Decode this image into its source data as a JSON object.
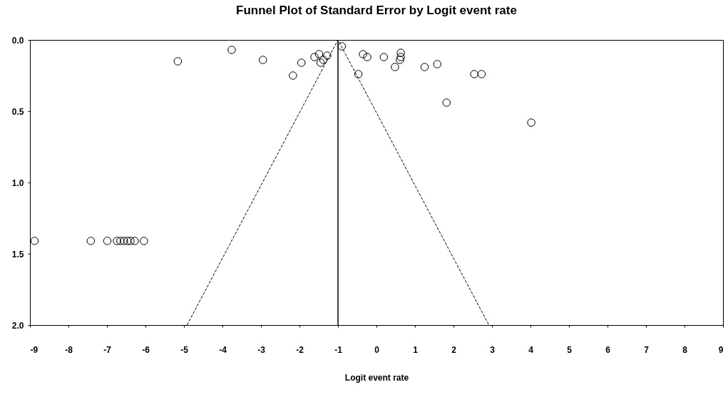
{
  "chart_data": {
    "type": "scatter",
    "title": "Funnel Plot of Standard Error by Logit event rate",
    "xlabel": "Logit event rate",
    "xlim": [
      -9,
      9
    ],
    "xticks": [
      -9,
      -8,
      -7,
      -6,
      -5,
      -4,
      -3,
      -2,
      -1,
      0,
      1,
      2,
      3,
      4,
      5,
      6,
      7,
      8,
      9
    ],
    "ylim": [
      2.0,
      0.0
    ],
    "yticks": [
      {
        "value": 0,
        "label": "0.0"
      },
      {
        "value": 0.5,
        "label": "0.5"
      },
      {
        "value": 1,
        "label": "1.0"
      },
      {
        "value": 1.5,
        "label": "1.5"
      },
      {
        "value": 2,
        "label": "2.0"
      }
    ],
    "grid": false,
    "legend": false,
    "series": [
      {
        "type": "scatter",
        "color": "#000000",
        "marker": "circle",
        "x": [
          -5.16,
          -3.76,
          -2.95,
          -1.95,
          -2.17,
          -1.61,
          -1.49,
          -1.28,
          -1.45,
          -1.38,
          -0.9,
          -0.47,
          -0.35,
          -0.24,
          0.19,
          0.63,
          0.63,
          0.61,
          0.48,
          1.25,
          1.58,
          2.54,
          2.73,
          1.82,
          4.02,
          -8.88,
          -7.42,
          -6.99,
          -6.74,
          -6.65,
          -6.56,
          -6.47,
          -6.39,
          -6.28,
          -6.04
        ],
        "values": [
          0.15,
          0.07,
          0.14,
          0.16,
          0.25,
          0.12,
          0.1,
          0.11,
          0.16,
          0.14,
          0.045,
          0.24,
          0.1,
          0.12,
          0.12,
          0.09,
          0.12,
          0.14,
          0.19,
          0.19,
          0.17,
          0.24,
          0.24,
          0.44,
          0.58,
          1.41,
          1.41,
          1.41,
          1.41,
          1.41,
          1.41,
          1.41,
          1.41,
          1.41,
          1.41
        ]
      },
      {
        "type": "line",
        "color": "#000000",
        "line_style": "dashed",
        "x": [
          -4.92,
          -1,
          2.92
        ],
        "values": [
          2,
          0,
          2
        ]
      }
    ],
    "ref_lines": [
      {
        "axis": "x",
        "value": -1,
        "color": "#000000"
      }
    ]
  }
}
